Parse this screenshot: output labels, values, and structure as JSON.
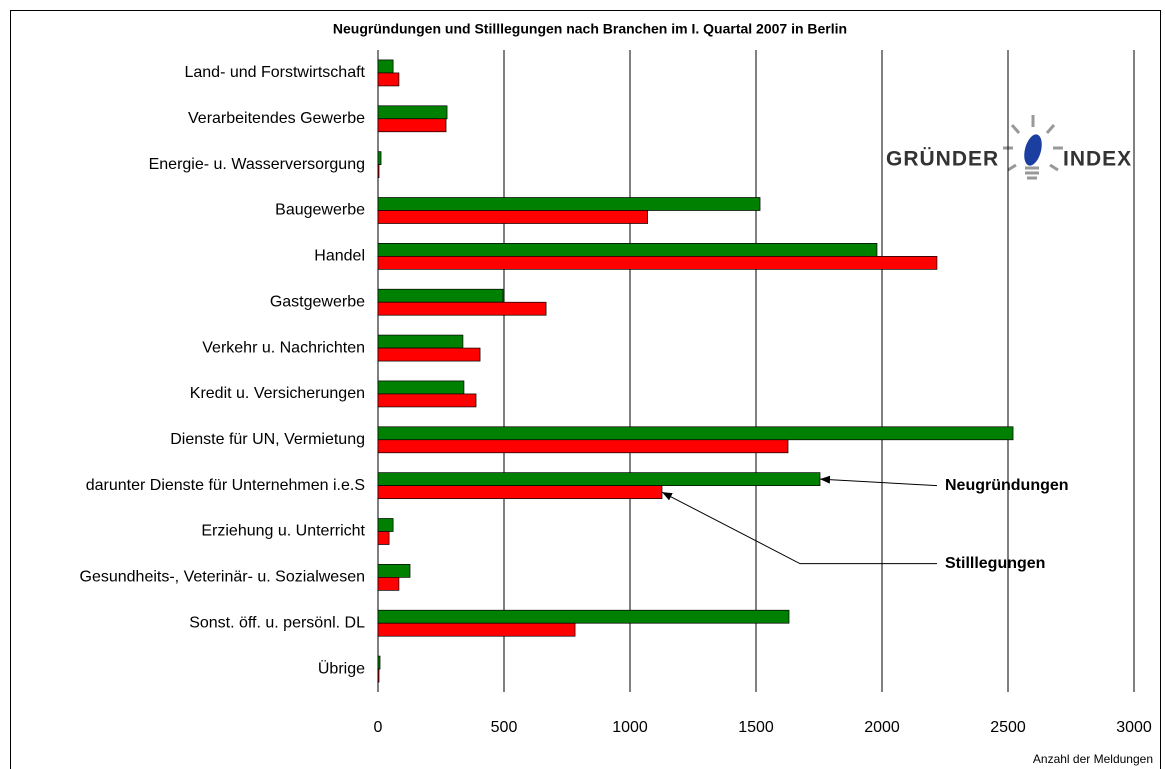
{
  "chart_data": {
    "type": "barh",
    "title": "Neugründungen und Stilllegungen nach Branchen im I. Quartal 2007 in Berlin",
    "x_label": "Anzahl der Meldungen",
    "categories": [
      "Land- und Forstwirtschaft",
      "Verarbeitendes Gewerbe",
      "Energie- u. Wasserversorgung",
      "Baugewerbe",
      "Handel",
      "Gastgewerbe",
      "Verkehr u. Nachrichten",
      "Kredit u. Versicherungen",
      "Dienste für UN, Vermietung",
      "darunter Dienste für Unternehmen i.e.S",
      "Erziehung u. Unterricht",
      "Gesundheits-, Veterinär- u. Sozialwesen",
      "Sonst. öff. u. persönl. DL",
      "Übrige"
    ],
    "series": [
      {
        "name": "Neugründungen",
        "color": "#008000",
        "values": [
          60,
          274,
          12,
          1516,
          1980,
          496,
          337,
          341,
          2520,
          1754,
          60,
          127,
          1631,
          8
        ]
      },
      {
        "name": "Stilllegungen",
        "color": "#ff0000",
        "values": [
          83,
          270,
          4,
          1070,
          2218,
          667,
          405,
          389,
          1627,
          1127,
          44,
          83,
          782,
          4
        ]
      }
    ],
    "xlim": [
      0,
      3000
    ],
    "xticks": [
      0,
      500,
      1000,
      1500,
      2000,
      2500,
      3000
    ],
    "grid": true
  },
  "logo": {
    "left": "GRÜNDER",
    "right": "INDEX"
  }
}
